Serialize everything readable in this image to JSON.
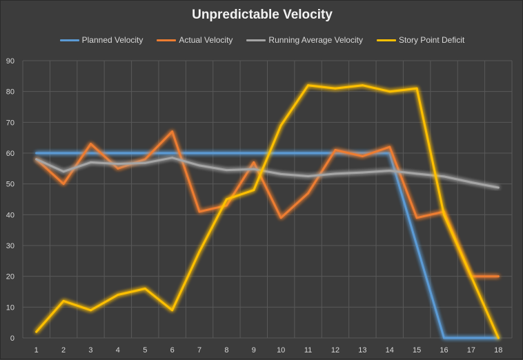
{
  "chart_data": {
    "type": "line",
    "title": "Unpredictable Velocity",
    "xlabel": "",
    "ylabel": "",
    "categories": [
      "1",
      "2",
      "3",
      "4",
      "5",
      "6",
      "7",
      "8",
      "9",
      "10",
      "11",
      "12",
      "13",
      "14",
      "15",
      "16",
      "17",
      "18"
    ],
    "ylim": [
      0,
      90
    ],
    "yticks": [
      0,
      10,
      20,
      30,
      40,
      50,
      60,
      70,
      80,
      90
    ],
    "grid": true,
    "legend_position": "top",
    "series": [
      {
        "name": "Planned Velocity",
        "color": "#5b9bd5",
        "values": [
          60,
          60,
          60,
          60,
          60,
          60,
          60,
          60,
          60,
          60,
          60,
          60,
          60,
          60,
          30,
          0,
          0,
          0
        ]
      },
      {
        "name": "Actual Velocity",
        "color": "#ed7d31",
        "values": [
          58,
          50,
          63,
          55,
          58,
          67,
          41,
          43,
          57,
          39,
          47,
          61,
          59,
          62,
          39,
          41,
          20,
          20
        ]
      },
      {
        "name": "Running Average Velocity",
        "color": "#a5a5a5",
        "values": [
          58,
          54,
          57,
          56.5,
          56.8,
          58.5,
          56,
          54.5,
          54.8,
          53.2,
          52.5,
          53.3,
          53.7,
          54.3,
          53.3,
          52.4,
          50.5,
          48.8
        ]
      },
      {
        "name": "Story Point Deficit",
        "color": "#ffc000",
        "values": [
          2,
          12,
          9,
          14,
          16,
          9,
          28,
          45,
          48,
          69,
          82,
          81,
          82,
          80,
          81,
          40,
          20,
          0
        ]
      }
    ]
  },
  "colors": {
    "background": "#3c3c3c",
    "gridline": "#595959",
    "text": "#d9d9d9"
  }
}
